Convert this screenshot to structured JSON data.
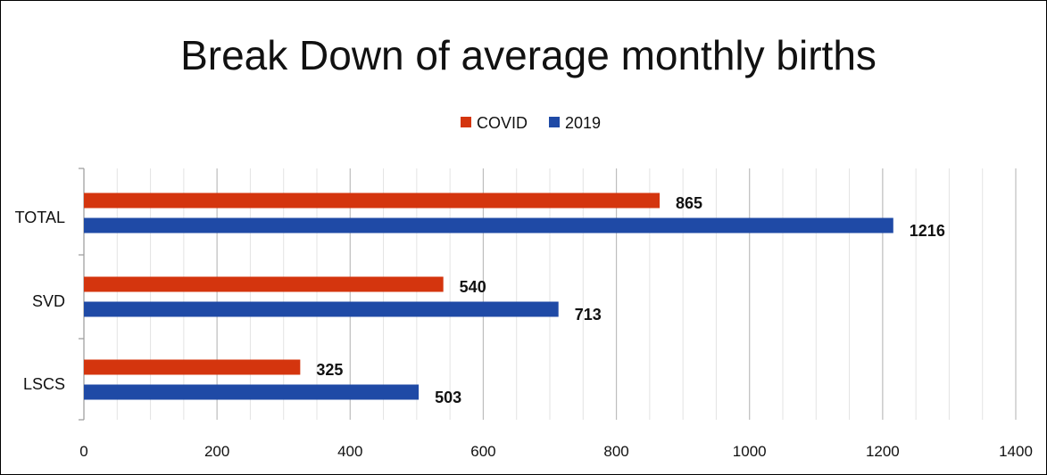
{
  "chart_data": {
    "type": "bar",
    "orientation": "horizontal",
    "title": "Break Down of average monthly births",
    "xlabel": "",
    "ylabel": "",
    "categories": [
      "TOTAL",
      "SVD",
      "LSCS"
    ],
    "series": [
      {
        "name": "COVID",
        "color": "#d4350e",
        "values": [
          865,
          540,
          325
        ]
      },
      {
        "name": "2019",
        "color": "#1f4aa6",
        "values": [
          1216,
          713,
          503
        ]
      }
    ],
    "xlim": [
      0,
      1400
    ],
    "x_ticks": [
      0,
      200,
      400,
      600,
      800,
      1000,
      1200,
      1400
    ],
    "minor_gridlines": true,
    "legend_position": "top-center",
    "data_labels": true
  }
}
